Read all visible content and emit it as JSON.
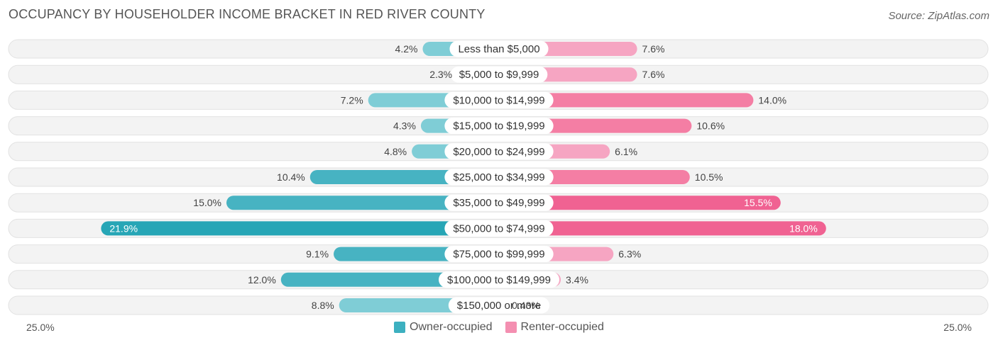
{
  "title": "OCCUPANCY BY HOUSEHOLDER INCOME BRACKET IN RED RIVER COUNTY",
  "source": "Source: ZipAtlas.com",
  "colors": {
    "owner": "#3db0c0",
    "owner_strong": "#27a6b6",
    "renter": "#f48fb1",
    "renter_strong": "#f06292",
    "row_bg": "#efefef"
  },
  "chart_data": {
    "type": "bar",
    "orientation": "horizontal-diverging",
    "title": "OCCUPANCY BY HOUSEHOLDER INCOME BRACKET IN RED RIVER COUNTY",
    "axis_min_label": "25.0%",
    "axis_max_label": "25.0%",
    "xlim": [
      -25,
      25
    ],
    "categories": [
      "Less than $5,000",
      "$5,000 to $9,999",
      "$10,000 to $14,999",
      "$15,000 to $19,999",
      "$20,000 to $24,999",
      "$25,000 to $34,999",
      "$35,000 to $49,999",
      "$50,000 to $74,999",
      "$75,000 to $99,999",
      "$100,000 to $149,999",
      "$150,000 or more"
    ],
    "series": [
      {
        "name": "Owner-occupied",
        "values": [
          4.2,
          2.3,
          7.2,
          4.3,
          4.8,
          10.4,
          15.0,
          21.9,
          9.1,
          12.0,
          8.8
        ],
        "labels": [
          "4.2%",
          "2.3%",
          "7.2%",
          "4.3%",
          "4.8%",
          "10.4%",
          "15.0%",
          "21.9%",
          "9.1%",
          "12.0%",
          "8.8%"
        ]
      },
      {
        "name": "Renter-occupied",
        "values": [
          7.6,
          7.6,
          14.0,
          10.6,
          6.1,
          10.5,
          15.5,
          18.0,
          6.3,
          3.4,
          0.43
        ],
        "labels": [
          "7.6%",
          "7.6%",
          "14.0%",
          "10.6%",
          "6.1%",
          "10.5%",
          "15.5%",
          "18.0%",
          "6.3%",
          "3.4%",
          "0.43%"
        ]
      }
    ]
  },
  "legend": {
    "owner_label": "Owner-occupied",
    "renter_label": "Renter-occupied"
  }
}
